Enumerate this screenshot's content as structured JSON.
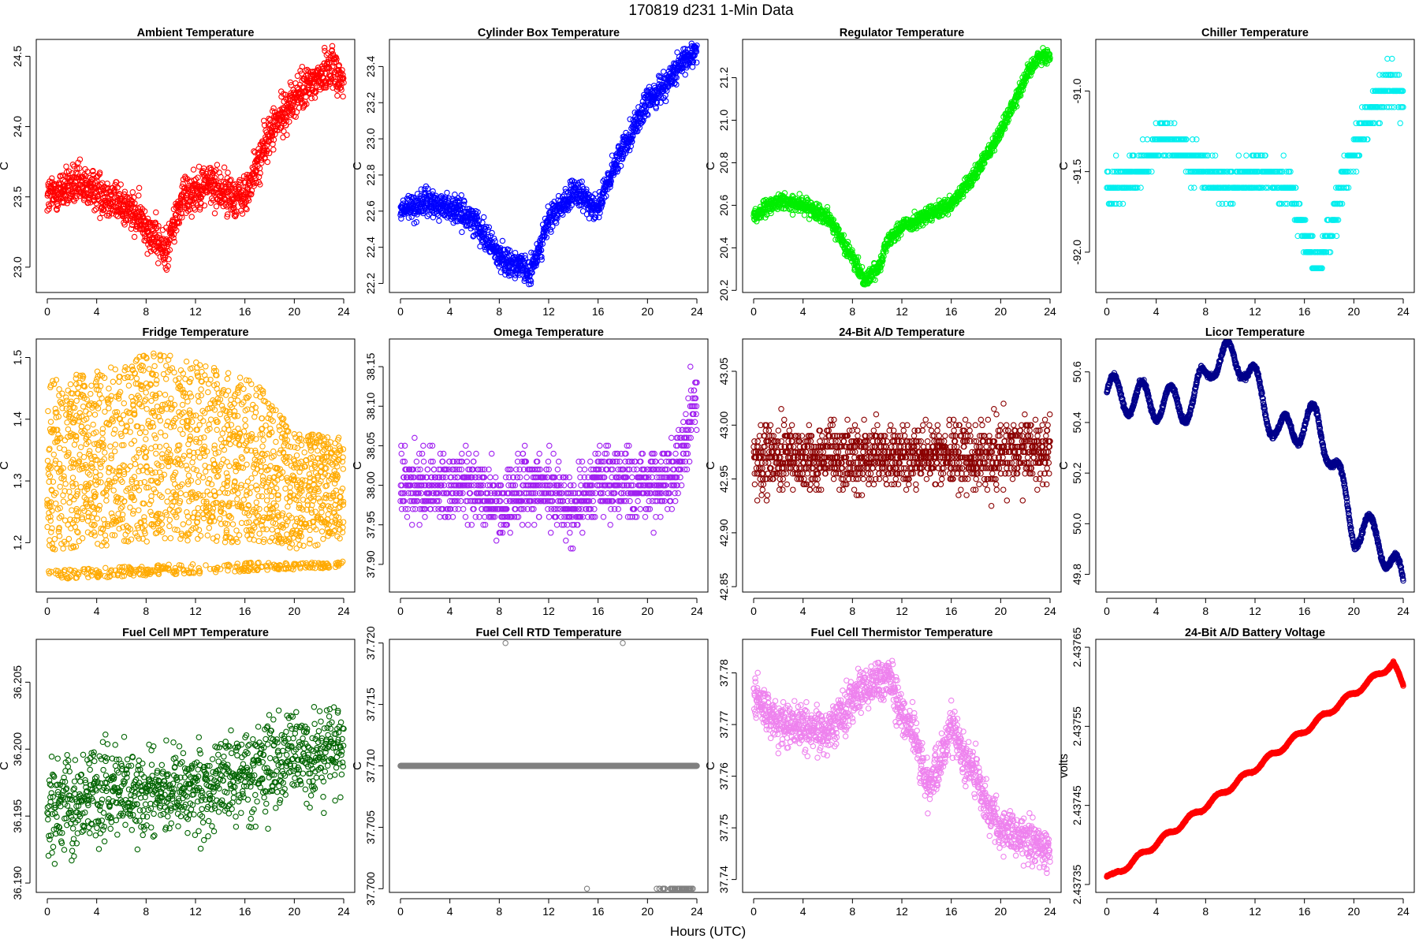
{
  "figure": {
    "title": "170819    d231    1-Min Data",
    "xlabel": "Hours (UTC)"
  },
  "chart_data": [
    {
      "type": "scatter",
      "title": "Ambient Temperature",
      "ylabel": "C",
      "color": "#ff0000",
      "xlim": [
        0,
        24
      ],
      "ylim": [
        22.82,
        24.62
      ],
      "xticks": [
        0,
        4,
        8,
        12,
        16,
        20,
        24
      ],
      "yticks": [
        {
          "v": 23.0,
          "label": "23.0"
        },
        {
          "v": 23.5,
          "label": "23.5"
        },
        {
          "v": 24.0,
          "label": "24.0"
        },
        {
          "v": 24.5,
          "label": "24.5"
        }
      ],
      "model": {
        "kind": "trend",
        "x": [
          0,
          2,
          4,
          6,
          8,
          9.5,
          11,
          13,
          15,
          16,
          18,
          20,
          22,
          23,
          24
        ],
        "y": [
          23.5,
          23.58,
          23.55,
          23.45,
          23.3,
          23.1,
          23.5,
          23.6,
          23.5,
          23.5,
          23.95,
          24.2,
          24.35,
          24.45,
          24.3
        ],
        "noise": 0.12,
        "n": 1300
      }
    },
    {
      "type": "scatter",
      "title": "Cylinder Box Temperature",
      "ylabel": "C",
      "color": "#0000ff",
      "xlim": [
        0,
        24
      ],
      "ylim": [
        22.15,
        23.55
      ],
      "xticks": [
        0,
        4,
        8,
        12,
        16,
        20,
        24
      ],
      "yticks": [
        {
          "v": 22.2,
          "label": "22.2"
        },
        {
          "v": 22.4,
          "label": "22.4"
        },
        {
          "v": 22.6,
          "label": "22.6"
        },
        {
          "v": 22.8,
          "label": "22.8"
        },
        {
          "v": 23.0,
          "label": "23.0"
        },
        {
          "v": 23.2,
          "label": "23.2"
        },
        {
          "v": 23.4,
          "label": "23.4"
        }
      ],
      "model": {
        "kind": "trend",
        "x": [
          0,
          2,
          4,
          6,
          8,
          9.5,
          10.5,
          12,
          14,
          16,
          18,
          20,
          22,
          24
        ],
        "y": [
          22.6,
          22.65,
          22.62,
          22.55,
          22.35,
          22.3,
          22.25,
          22.55,
          22.7,
          22.62,
          22.95,
          23.2,
          23.35,
          23.5
        ],
        "noise": 0.06,
        "n": 1300
      }
    },
    {
      "type": "scatter",
      "title": "Regulator Temperature",
      "ylabel": "C",
      "color": "#00ee00",
      "xlim": [
        0,
        24
      ],
      "ylim": [
        20.19,
        21.38
      ],
      "xticks": [
        0,
        4,
        8,
        12,
        16,
        20,
        24
      ],
      "yticks": [
        {
          "v": 20.2,
          "label": "20.2"
        },
        {
          "v": 20.4,
          "label": "20.4"
        },
        {
          "v": 20.6,
          "label": "20.6"
        },
        {
          "v": 20.8,
          "label": "20.8"
        },
        {
          "v": 21.0,
          "label": "21.0"
        },
        {
          "v": 21.2,
          "label": "21.2"
        }
      ],
      "model": {
        "kind": "trend",
        "x": [
          0,
          2,
          4,
          6,
          8,
          9,
          10,
          11,
          12,
          14,
          16,
          18,
          20,
          22,
          23,
          24
        ],
        "y": [
          20.55,
          20.62,
          20.6,
          20.55,
          20.35,
          20.25,
          20.3,
          20.45,
          20.5,
          20.55,
          20.6,
          20.75,
          20.95,
          21.2,
          21.3,
          21.3
        ],
        "noise": 0.03,
        "n": 1300
      }
    },
    {
      "type": "scatter",
      "title": "Chiller Temperature",
      "ylabel": "C",
      "color": "#00eeee",
      "xlim": [
        0,
        24
      ],
      "ylim": [
        -92.25,
        -90.68
      ],
      "xticks": [
        0,
        4,
        8,
        12,
        16,
        20,
        24
      ],
      "yticks": [
        {
          "v": -91.0,
          "label": "-91.0"
        },
        {
          "v": -91.5,
          "label": "-91.5"
        },
        {
          "v": -92.0,
          "label": "-92.0"
        }
      ],
      "model": {
        "kind": "quantized",
        "step": 0.1,
        "x": [
          0,
          1.5,
          3,
          4.5,
          6,
          7,
          8,
          10,
          11,
          12,
          14,
          15,
          16,
          17,
          18,
          19,
          20,
          21,
          22,
          23,
          24
        ],
        "y": [
          -91.6,
          -91.55,
          -91.45,
          -91.3,
          -91.35,
          -91.45,
          -91.5,
          -91.6,
          -91.55,
          -91.5,
          -91.55,
          -91.6,
          -91.9,
          -92.1,
          -91.9,
          -91.6,
          -91.35,
          -91.2,
          -91.05,
          -90.95,
          -91.05
        ],
        "noise": 0.1,
        "n": 900
      }
    },
    {
      "type": "scatter",
      "title": "Fridge Temperature",
      "ylabel": "C",
      "color": "#ffaa00",
      "xlim": [
        0,
        24
      ],
      "ylim": [
        1.12,
        1.53
      ],
      "xticks": [
        0,
        4,
        8,
        12,
        16,
        20,
        24
      ],
      "yticks": [
        {
          "v": 1.2,
          "label": "1.2"
        },
        {
          "v": 1.3,
          "label": "1.3"
        },
        {
          "v": 1.4,
          "label": "1.4"
        },
        {
          "v": 1.5,
          "label": "1.5"
        }
      ],
      "model": {
        "kind": "uniform",
        "lowX": [
          0,
          24
        ],
        "lowY": [
          1.14,
          1.16
        ],
        "highX": [
          0,
          9,
          11,
          17,
          20,
          24
        ],
        "highY": [
          1.46,
          1.51,
          1.5,
          1.46,
          1.38,
          1.37
        ],
        "n": 2000
      }
    },
    {
      "type": "scatter",
      "title": "Omega Temperature",
      "ylabel": "C",
      "color": "#a020f0",
      "xlim": [
        0,
        24
      ],
      "ylim": [
        37.865,
        38.185
      ],
      "xticks": [
        0,
        4,
        8,
        12,
        16,
        20,
        24
      ],
      "yticks": [
        {
          "v": 37.9,
          "label": "37.90"
        },
        {
          "v": 37.95,
          "label": "37.95"
        },
        {
          "v": 38.0,
          "label": "38.00"
        },
        {
          "v": 38.05,
          "label": "38.05"
        },
        {
          "v": 38.1,
          "label": "38.10"
        },
        {
          "v": 38.15,
          "label": "38.15"
        }
      ],
      "model": {
        "kind": "quantized",
        "step": 0.01,
        "x": [
          0,
          6,
          8,
          10,
          12,
          14,
          16,
          20,
          22,
          23,
          24
        ],
        "y": [
          38.0,
          38.0,
          37.97,
          38.0,
          38.0,
          37.97,
          38.01,
          38.0,
          38.01,
          38.05,
          38.12
        ],
        "noise": 0.035,
        "n": 1200
      }
    },
    {
      "type": "scatter",
      "title": "24-Bit A/D Temperature",
      "ylabel": "C",
      "color": "#8b0000",
      "xlim": [
        0,
        24
      ],
      "ylim": [
        42.845,
        43.08
      ],
      "xticks": [
        0,
        4,
        8,
        12,
        16,
        20,
        24
      ],
      "yticks": [
        {
          "v": 42.85,
          "label": "42.85"
        },
        {
          "v": 42.9,
          "label": "42.90"
        },
        {
          "v": 42.95,
          "label": "42.95"
        },
        {
          "v": 43.0,
          "label": "43.00"
        },
        {
          "v": 43.05,
          "label": "43.05"
        }
      ],
      "model": {
        "kind": "quantized",
        "step": 0.005,
        "x": [
          0,
          12,
          24
        ],
        "y": [
          42.97,
          42.97,
          42.975
        ],
        "noise": 0.025,
        "n": 1300
      }
    },
    {
      "type": "scatter",
      "title": "Licor Temperature",
      "ylabel": "C",
      "color": "#00008b",
      "xlim": [
        0,
        24
      ],
      "ylim": [
        49.73,
        50.73
      ],
      "xticks": [
        0,
        4,
        8,
        12,
        16,
        20,
        24
      ],
      "yticks": [
        {
          "v": 49.8,
          "label": "49.8"
        },
        {
          "v": 50.0,
          "label": "50.0"
        },
        {
          "v": 50.2,
          "label": "50.2"
        },
        {
          "v": 50.4,
          "label": "50.4"
        },
        {
          "v": 50.6,
          "label": "50.6"
        }
      ],
      "model": {
        "kind": "wave",
        "x": [
          0,
          4,
          7,
          8.5,
          11,
          12,
          14,
          16,
          17,
          18,
          20,
          22,
          24
        ],
        "y": [
          50.52,
          50.48,
          50.47,
          50.65,
          50.65,
          50.55,
          50.35,
          50.4,
          50.4,
          50.3,
          49.98,
          49.95,
          49.75
        ],
        "amp": 0.07,
        "period": 2.3,
        "noise": 0.005,
        "n": 1440
      }
    },
    {
      "type": "scatter",
      "title": "Fuel Cell MPT Temperature",
      "ylabel": "C",
      "color": "#006400",
      "xlim": [
        0,
        24
      ],
      "ylim": [
        36.1893,
        36.2082
      ],
      "xticks": [
        0,
        4,
        8,
        12,
        16,
        20,
        24
      ],
      "yticks": [
        {
          "v": 36.19,
          "label": "36.190"
        },
        {
          "v": 36.195,
          "label": "36.195"
        },
        {
          "v": 36.2,
          "label": "36.200"
        },
        {
          "v": 36.205,
          "label": "36.205"
        }
      ],
      "model": {
        "kind": "trend",
        "x": [
          0,
          4,
          8,
          12,
          16,
          20,
          24
        ],
        "y": [
          36.1955,
          36.1967,
          36.1968,
          36.197,
          36.1982,
          36.1995,
          36.2
        ],
        "noise": 0.0028,
        "n": 1000
      }
    },
    {
      "type": "scatter",
      "title": "Fuel Cell RTD Temperature",
      "ylabel": "C",
      "color": "#808080",
      "xlim": [
        0,
        24
      ],
      "ylim": [
        37.6997,
        37.7203
      ],
      "xticks": [
        0,
        4,
        8,
        12,
        16,
        20,
        24
      ],
      "yticks": [
        {
          "v": 37.7,
          "label": "37.700"
        },
        {
          "v": 37.705,
          "label": "37.705"
        },
        {
          "v": 37.71,
          "label": "37.710"
        },
        {
          "v": 37.715,
          "label": "37.715"
        },
        {
          "v": 37.72,
          "label": "37.720"
        }
      ],
      "model": {
        "kind": "constant",
        "level": 37.71,
        "n": 1440,
        "extras": [
          {
            "x": 8.5,
            "y": 37.72
          },
          {
            "x": 18.0,
            "y": 37.72
          },
          {
            "x": 15.1,
            "y": 37.7
          }
        ],
        "lowRange": [
          20.5,
          24
        ],
        "lowLevel": 37.7,
        "lowCount": 45
      }
    },
    {
      "type": "scatter",
      "title": "Fuel Cell Thermistor Temperature",
      "ylabel": "C",
      "color": "#ee82ee",
      "xlim": [
        0,
        24
      ],
      "ylim": [
        37.7375,
        37.7865
      ],
      "xticks": [
        0,
        4,
        8,
        12,
        16,
        20,
        24
      ],
      "yticks": [
        {
          "v": 37.74,
          "label": "37.74"
        },
        {
          "v": 37.75,
          "label": "37.75"
        },
        {
          "v": 37.76,
          "label": "37.76"
        },
        {
          "v": 37.77,
          "label": "37.77"
        },
        {
          "v": 37.78,
          "label": "37.78"
        }
      ],
      "model": {
        "kind": "trend",
        "x": [
          0,
          2,
          4,
          6,
          8,
          10,
          11,
          12,
          13,
          14,
          15,
          16,
          17,
          18,
          19,
          20,
          22,
          24
        ],
        "y": [
          37.775,
          37.77,
          37.77,
          37.768,
          37.775,
          37.778,
          37.78,
          37.772,
          37.768,
          37.758,
          37.762,
          37.77,
          37.764,
          37.76,
          37.754,
          37.75,
          37.748,
          37.745
        ],
        "noise": 0.0035,
        "n": 1300
      }
    },
    {
      "type": "scatter",
      "title": "24-Bit A/D Battery Voltage",
      "ylabel": "volts",
      "color": "#ff0000",
      "xlim": [
        0,
        24
      ],
      "ylim": [
        2.43734,
        2.43766
      ],
      "xticks": [
        0,
        4,
        8,
        12,
        16,
        20,
        24
      ],
      "yticks": [
        {
          "v": 2.43735,
          "label": "2.43735"
        },
        {
          "v": 2.43745,
          "label": "2.43745"
        },
        {
          "v": 2.43755,
          "label": "2.43755"
        },
        {
          "v": 2.43765,
          "label": "2.43765"
        }
      ],
      "model": {
        "kind": "wave",
        "x": [
          0,
          0.5,
          23.2,
          24
        ],
        "y": [
          2.43736,
          2.43736,
          2.43763,
          2.4376
        ],
        "amp": 3.5e-06,
        "period": 2.1,
        "noise": 4e-07,
        "n": 1440
      }
    }
  ]
}
